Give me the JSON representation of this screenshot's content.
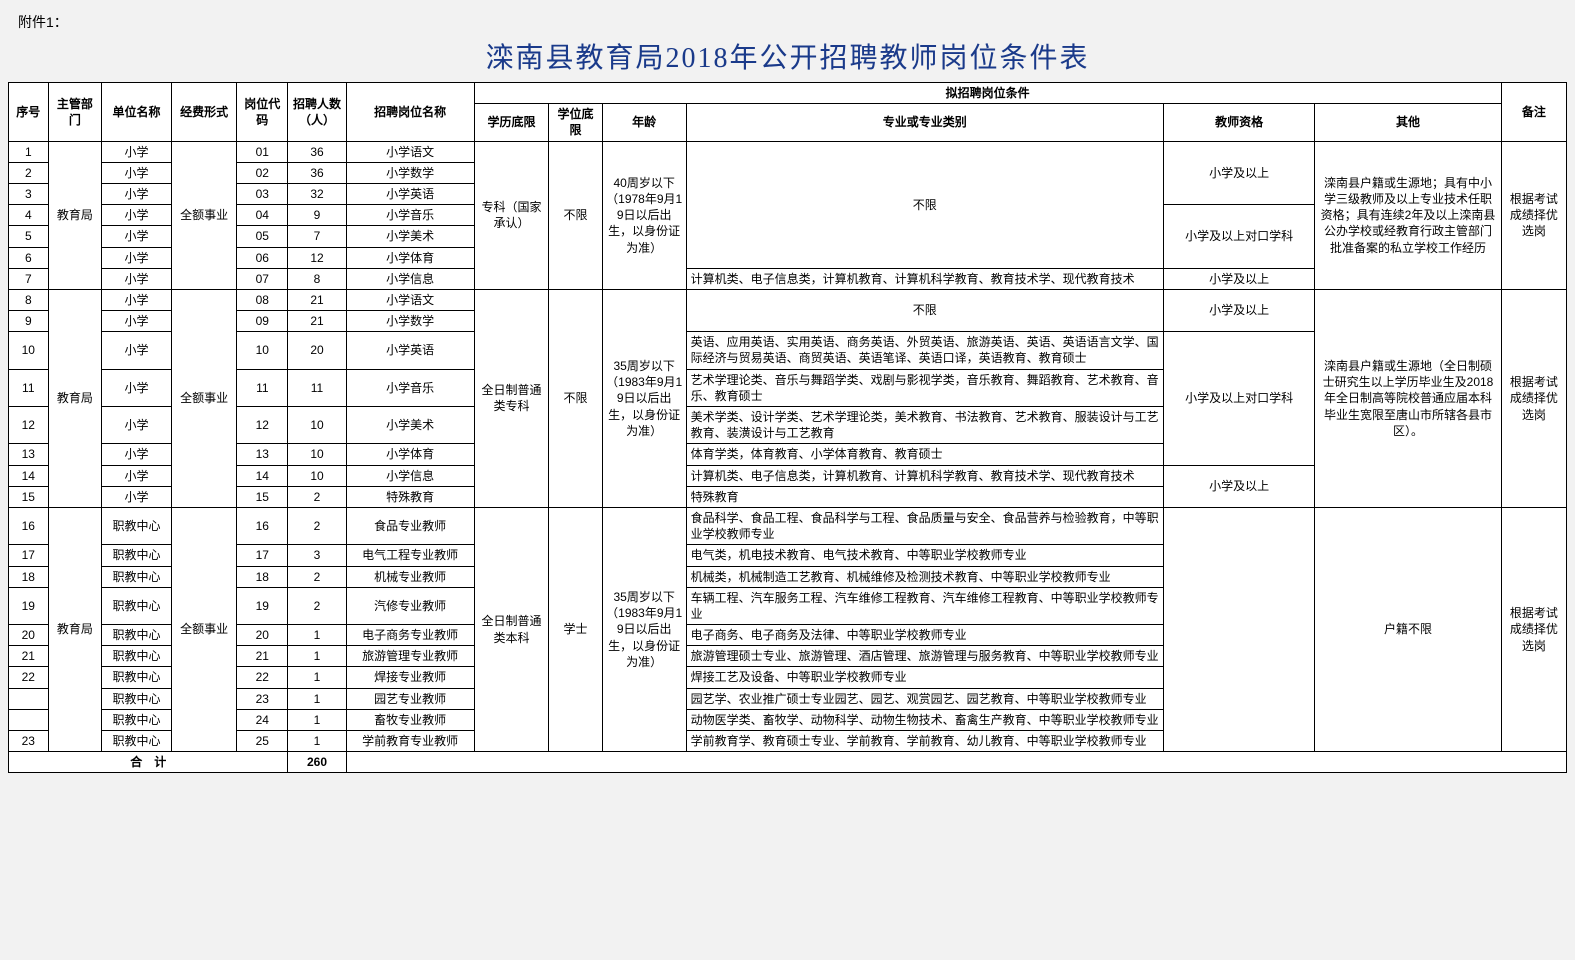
{
  "attachment_label": "附件1：",
  "title": "滦南县教育局2018年公开招聘教师岗位条件表",
  "columns": {
    "idx": "序号",
    "dept": "主管部门",
    "unit": "单位名称",
    "fund": "经费形式",
    "code": "岗位代码",
    "num": "招聘人数（人）",
    "pos": "招聘岗位名称",
    "req_group": "拟招聘岗位条件",
    "edu": "学历底限",
    "deg": "学位底限",
    "age": "年龄",
    "major": "专业或专业类别",
    "cert": "教师资格",
    "other": "其他",
    "note": "备注"
  },
  "dept_val": "教育局",
  "fund_val": "全额事业",
  "edu1": "专科（国家承认）",
  "deg1": "不限",
  "age1": "40周岁以下（1978年9月19日以后出生，以身份证为准）",
  "major_unlimited": "不限",
  "cert_xx": "小学及以上",
  "cert_xx_dk": "小学及以上对口学科",
  "other1": "滦南县户籍或生源地；具有中小学三级教师及以上专业技术任职资格；具有连续2年及以上滦南县公办学校或经教育行政主管部门批准备案的私立学校工作经历",
  "note_val": "根据考试成绩择优选岗",
  "edu2": "全日制普通类专科",
  "deg2": "不限",
  "age2": "35周岁以下（1983年9月19日以后出生，以身份证为准）",
  "other2": "滦南县户籍或生源地（全日制硕士研究生以上学历毕业生及2018年全日制高等院校普通应届本科毕业生宽限至唐山市所辖各县市区）。",
  "edu3": "全日制普通类本科",
  "deg3": "学士",
  "age3": "35周岁以下（1983年9月19日以后出生，以身份证为准）",
  "other3": "户籍不限",
  "rows": [
    {
      "idx": "1",
      "unit": "小学",
      "code": "01",
      "num": "36",
      "pos": "小学语文"
    },
    {
      "idx": "2",
      "unit": "小学",
      "code": "02",
      "num": "36",
      "pos": "小学数学"
    },
    {
      "idx": "3",
      "unit": "小学",
      "code": "03",
      "num": "32",
      "pos": "小学英语"
    },
    {
      "idx": "4",
      "unit": "小学",
      "code": "04",
      "num": "9",
      "pos": "小学音乐"
    },
    {
      "idx": "5",
      "unit": "小学",
      "code": "05",
      "num": "7",
      "pos": "小学美术"
    },
    {
      "idx": "6",
      "unit": "小学",
      "code": "06",
      "num": "12",
      "pos": "小学体育"
    },
    {
      "idx": "7",
      "unit": "小学",
      "code": "07",
      "num": "8",
      "pos": "小学信息",
      "major": "计算机类、电子信息类，计算机教育、计算机科学教育、教育技术学、现代教育技术"
    },
    {
      "idx": "8",
      "unit": "小学",
      "code": "08",
      "num": "21",
      "pos": "小学语文",
      "major": "不限"
    },
    {
      "idx": "9",
      "unit": "小学",
      "code": "09",
      "num": "21",
      "pos": "小学数学",
      "major": "不限"
    },
    {
      "idx": "10",
      "unit": "小学",
      "code": "10",
      "num": "20",
      "pos": "小学英语",
      "major": "英语、应用英语、实用英语、商务英语、外贸英语、旅游英语、英语、英语语言文学、国际经济与贸易英语、商贸英语、英语笔译、英语口译，英语教育、教育硕士"
    },
    {
      "idx": "11",
      "unit": "小学",
      "code": "11",
      "num": "11",
      "pos": "小学音乐",
      "major": "艺术学理论类、音乐与舞蹈学类、戏剧与影视学类，音乐教育、舞蹈教育、艺术教育、音乐、教育硕士"
    },
    {
      "idx": "12",
      "unit": "小学",
      "code": "12",
      "num": "10",
      "pos": "小学美术",
      "major": "美术学类、设计学类、艺术学理论类，美术教育、书法教育、艺术教育、服装设计与工艺教育、装潢设计与工艺教育"
    },
    {
      "idx": "13",
      "unit": "小学",
      "code": "13",
      "num": "10",
      "pos": "小学体育",
      "major": "体育学类，体育教育、小学体育教育、教育硕士"
    },
    {
      "idx": "14",
      "unit": "小学",
      "code": "14",
      "num": "10",
      "pos": "小学信息",
      "major": "计算机类、电子信息类，计算机教育、计算机科学教育、教育技术学、现代教育技术"
    },
    {
      "idx": "15",
      "unit": "小学",
      "code": "15",
      "num": "2",
      "pos": "特殊教育",
      "major": "特殊教育"
    },
    {
      "idx": "16",
      "unit": "职教中心",
      "code": "16",
      "num": "2",
      "pos": "食品专业教师",
      "major": "食品科学、食品工程、食品科学与工程、食品质量与安全、食品营养与检验教育，中等职业学校教师专业"
    },
    {
      "idx": "17",
      "unit": "职教中心",
      "code": "17",
      "num": "3",
      "pos": "电气工程专业教师",
      "major": "电气类，机电技术教育、电气技术教育、中等职业学校教师专业"
    },
    {
      "idx": "18",
      "unit": "职教中心",
      "code": "18",
      "num": "2",
      "pos": "机械专业教师",
      "major": "机械类，机械制造工艺教育、机械维修及检测技术教育、中等职业学校教师专业"
    },
    {
      "idx": "19",
      "unit": "职教中心",
      "code": "19",
      "num": "2",
      "pos": "汽修专业教师",
      "major": "车辆工程、汽车服务工程、汽车维修工程教育、汽车维修工程教育、中等职业学校教师专业"
    },
    {
      "idx": "20",
      "unit": "职教中心",
      "code": "20",
      "num": "1",
      "pos": "电子商务专业教师",
      "major": "电子商务、电子商务及法律、中等职业学校教师专业"
    },
    {
      "idx": "21",
      "unit": "职教中心",
      "code": "21",
      "num": "1",
      "pos": "旅游管理专业教师",
      "major": "旅游管理硕士专业、旅游管理、酒店管理、旅游管理与服务教育、中等职业学校教师专业"
    },
    {
      "idx": "22",
      "unit": "职教中心",
      "code": "22",
      "num": "1",
      "pos": "焊接专业教师",
      "major": "焊接工艺及设备、中等职业学校教师专业"
    },
    {
      "idx": "",
      "unit": "职教中心",
      "code": "23",
      "num": "1",
      "pos": "园艺专业教师",
      "major": "园艺学、农业推广硕士专业园艺、园艺、观赏园艺、园艺教育、中等职业学校教师专业"
    },
    {
      "idx": "",
      "unit": "职教中心",
      "code": "24",
      "num": "1",
      "pos": "畜牧专业教师",
      "major": "动物医学类、畜牧学、动物科学、动物生物技术、畜禽生产教育、中等职业学校教师专业"
    },
    {
      "idx": "23",
      "unit": "职教中心",
      "code": "25",
      "num": "1",
      "pos": "学前教育专业教师",
      "major": "学前教育学、教育硕士专业、学前教育、学前教育、幼儿教育、中等职业学校教师专业"
    }
  ],
  "total_label": "合　计",
  "total_num": "260"
}
